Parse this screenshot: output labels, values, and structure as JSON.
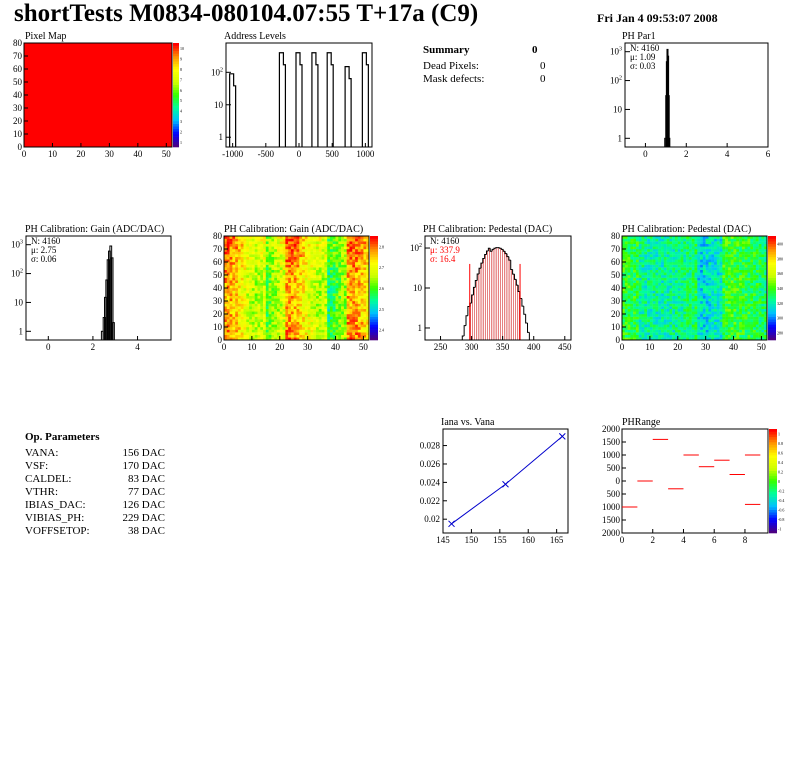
{
  "header": {
    "title": "shortTests M0834-080104.07:55 T+17a (C9)",
    "date": "Fri Jan  4 09:53:07 2008"
  },
  "summary": {
    "title": "Summary",
    "title_value": "0",
    "rows": [
      {
        "label": "Dead Pixels:",
        "value": "0"
      },
      {
        "label": "Mask defects:",
        "value": "0"
      }
    ]
  },
  "op_params": {
    "title": "Op. Parameters",
    "rows": [
      {
        "label": "VANA:",
        "value": "156 DAC"
      },
      {
        "label": "VSF:",
        "value": "170 DAC"
      },
      {
        "label": "CALDEL:",
        "value": "83 DAC"
      },
      {
        "label": "VTHR:",
        "value": "77 DAC"
      },
      {
        "label": "IBIAS_DAC:",
        "value": "126 DAC"
      },
      {
        "label": "VIBIAS_PH:",
        "value": "229 DAC"
      },
      {
        "label": "VOFFSETOP:",
        "value": "38 DAC"
      }
    ]
  },
  "colors": {
    "frame": "#000000",
    "histo_line": "#000000",
    "fit_red": "#ff0000",
    "pedestal_hatch": "#cc0000",
    "iana_line": "#0000cc"
  },
  "chart_data": [
    {
      "id": "pixel_map",
      "type": "heatmap",
      "title": "Pixel Map",
      "xlim": [
        0,
        52
      ],
      "ylim": [
        0,
        80
      ],
      "xticks": [
        "0",
        "10",
        "20",
        "30",
        "40",
        "50"
      ],
      "yticks": [
        "0",
        "10",
        "20",
        "30",
        "40",
        "50",
        "60",
        "70",
        "80"
      ],
      "uniform_value": 10,
      "palette_ticks": [
        "1",
        "2",
        "3",
        "4",
        "5",
        "6",
        "7",
        "8",
        "9",
        "10"
      ]
    },
    {
      "id": "address_levels",
      "type": "bar",
      "title": "Address Levels",
      "log_y": true,
      "xlim": [
        -1100,
        1100
      ],
      "ylim": [
        0.5,
        800
      ],
      "xticks": [
        "-1000",
        "-500",
        "0",
        "500",
        "1000"
      ],
      "yticks": [
        "1",
        "10",
        "10^2"
      ],
      "peaks": [
        {
          "x": -1000,
          "height": 90
        },
        {
          "x": -250,
          "height": 400
        },
        {
          "x": 0,
          "height": 400
        },
        {
          "x": 240,
          "height": 400
        },
        {
          "x": 470,
          "height": 400
        },
        {
          "x": 740,
          "height": 150
        },
        {
          "x": 1000,
          "height": 400
        }
      ]
    },
    {
      "id": "ph_par1",
      "type": "bar",
      "title": "PH Par1",
      "log_y": true,
      "xlim": [
        -1,
        6
      ],
      "ylim": [
        0.5,
        2000
      ],
      "xticks": [
        "0",
        "2",
        "4",
        "6"
      ],
      "yticks": [
        "1",
        "10",
        "10^2",
        "10^3"
      ],
      "stats": {
        "N": "4160",
        "mean": "1.09",
        "sigma": "0.03"
      },
      "bins": [
        {
          "x": 0.97,
          "y": 1
        },
        {
          "x": 1.02,
          "y": 30
        },
        {
          "x": 1.05,
          "y": 450
        },
        {
          "x": 1.08,
          "y": 1200
        },
        {
          "x": 1.11,
          "y": 700
        },
        {
          "x": 1.14,
          "y": 30
        },
        {
          "x": 1.17,
          "y": 1
        }
      ]
    },
    {
      "id": "ph_gain_hist",
      "type": "bar",
      "title": "PH Calibration: Gain (ADC/DAC)",
      "log_y": true,
      "xlim": [
        -1,
        5.5
      ],
      "ylim": [
        0.5,
        2000
      ],
      "xticks": [
        "0",
        "2",
        "4"
      ],
      "yticks": [
        "1",
        "10",
        "10^2",
        "10^3"
      ],
      "stats": {
        "N": "4160",
        "mean": "2.75",
        "sigma": "0.06"
      },
      "bins": [
        {
          "x": 2.42,
          "y": 1
        },
        {
          "x": 2.5,
          "y": 3
        },
        {
          "x": 2.56,
          "y": 15
        },
        {
          "x": 2.62,
          "y": 60
        },
        {
          "x": 2.68,
          "y": 300
        },
        {
          "x": 2.74,
          "y": 600
        },
        {
          "x": 2.8,
          "y": 900
        },
        {
          "x": 2.86,
          "y": 350
        },
        {
          "x": 2.92,
          "y": 2
        }
      ]
    },
    {
      "id": "ph_gain_map",
      "type": "heatmap",
      "title": "PH Calibration: Gain (ADC/DAC)",
      "xlim": [
        0,
        52
      ],
      "ylim": [
        0,
        80
      ],
      "xticks": [
        "0",
        "10",
        "20",
        "30",
        "40",
        "50"
      ],
      "yticks": [
        "0",
        "10",
        "20",
        "30",
        "40",
        "50",
        "60",
        "70",
        "80"
      ],
      "zlim": [
        2.35,
        2.85
      ],
      "palette_ticks": [
        "2.4",
        "2.5",
        "2.6",
        "2.7",
        "2.8"
      ]
    },
    {
      "id": "ph_pedestal_hist",
      "type": "bar",
      "title": "PH Calibration: Pedestal (DAC)",
      "log_y": true,
      "xlim": [
        225,
        460
      ],
      "ylim": [
        0.5,
        200
      ],
      "xticks": [
        "250",
        "300",
        "350",
        "400",
        "450"
      ],
      "yticks": [
        "1",
        "10",
        "10^2"
      ],
      "stats": {
        "N": "4160",
        "mean": "337.9",
        "sigma": "16.4"
      },
      "fit_range": [
        297,
        378
      ],
      "mean": 337.9,
      "sigma": 16.4,
      "peak": 110
    },
    {
      "id": "ph_pedestal_map",
      "type": "heatmap",
      "title": "PH Calibration: Pedestal (DAC)",
      "xlim": [
        0,
        52
      ],
      "ylim": [
        0,
        80
      ],
      "xticks": [
        "0",
        "10",
        "20",
        "30",
        "40",
        "50"
      ],
      "yticks": [
        "0",
        "10",
        "20",
        "30",
        "40",
        "50",
        "60",
        "70",
        "80"
      ],
      "zlim": [
        280,
        410
      ],
      "palette_ticks": [
        "280",
        "300",
        "320",
        "340",
        "360",
        "380",
        "400"
      ]
    },
    {
      "id": "iana_vana",
      "type": "line",
      "title": "Iana vs. Vana",
      "xlim": [
        145,
        167
      ],
      "ylim": [
        0.0185,
        0.0298
      ],
      "xticks": [
        "145",
        "150",
        "155",
        "160",
        "165"
      ],
      "yticks": [
        "0.02",
        "0.022",
        "0.024",
        "0.026",
        "0.028"
      ],
      "x": [
        146.5,
        156,
        166
      ],
      "y": [
        0.0195,
        0.0238,
        0.029
      ]
    },
    {
      "id": "ph_range",
      "type": "scatter",
      "title": "PHRange",
      "xlim": [
        0,
        9.5
      ],
      "ylim": [
        -2000,
        2000
      ],
      "xticks": [
        "0",
        "2",
        "4",
        "6",
        "8"
      ],
      "yticks": [
        "2000",
        "1500",
        "1000",
        "500",
        "0",
        "500",
        "1000",
        "1500",
        "2000"
      ],
      "palette_ticks": [
        "-1",
        "-0.8",
        "-0.6",
        "-0.4",
        "-0.2",
        "0",
        "0.2",
        "0.4",
        "0.6",
        "0.8",
        "1"
      ],
      "segments": [
        {
          "x0": 0,
          "x1": 1,
          "y": -1000
        },
        {
          "x0": 1,
          "x1": 2,
          "y": 0
        },
        {
          "x0": 2,
          "x1": 3,
          "y": 1600
        },
        {
          "x0": 3,
          "x1": 4,
          "y": -300
        },
        {
          "x0": 4,
          "x1": 5,
          "y": 1000
        },
        {
          "x0": 5,
          "x1": 6,
          "y": 550
        },
        {
          "x0": 6,
          "x1": 7,
          "y": 800
        },
        {
          "x0": 7,
          "x1": 8,
          "y": 250
        },
        {
          "x0": 8,
          "x1": 9,
          "y": 1000
        },
        {
          "x0": 8,
          "x1": 9,
          "y": -900
        }
      ]
    }
  ]
}
